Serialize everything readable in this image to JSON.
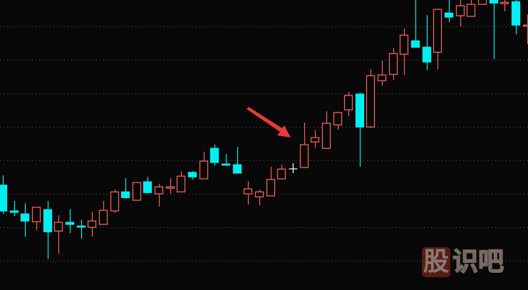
{
  "chart_data": {
    "type": "candlestick",
    "title": "",
    "xlabel": "",
    "ylabel": "",
    "ylim": [
      -8.7,
      77.9
    ],
    "grid": true,
    "grid_step": 10,
    "colors": {
      "up": "#f0605a",
      "down": "#00f0f0",
      "background": "#080808",
      "grid": "#555555",
      "arrow": "#e83a3a"
    },
    "candles": [
      {
        "o": 22.6,
        "h": 25.5,
        "l": 14.0,
        "c": 14.9
      },
      {
        "o": 14.9,
        "h": 17.9,
        "l": 13.4,
        "c": 14.5
      },
      {
        "o": 14.0,
        "h": 17.2,
        "l": 7.2,
        "c": 11.9
      },
      {
        "o": 11.7,
        "h": 16.0,
        "l": 9.1,
        "c": 16.0
      },
      {
        "o": 15.3,
        "h": 17.9,
        "l": 0.6,
        "c": 8.7
      },
      {
        "o": 8.9,
        "h": 13.6,
        "l": 2.1,
        "c": 11.5
      },
      {
        "o": 11.5,
        "h": 15.5,
        "l": 8.3,
        "c": 10.9
      },
      {
        "o": 10.4,
        "h": 12.3,
        "l": 6.6,
        "c": 10.2
      },
      {
        "o": 10.0,
        "h": 14.7,
        "l": 7.2,
        "c": 11.9
      },
      {
        "o": 10.9,
        "h": 17.9,
        "l": 10.9,
        "c": 15.1
      },
      {
        "o": 14.9,
        "h": 21.3,
        "l": 14.3,
        "c": 20.6
      },
      {
        "o": 20.6,
        "h": 24.7,
        "l": 18.5,
        "c": 18.9
      },
      {
        "o": 18.1,
        "h": 23.4,
        "l": 18.1,
        "c": 23.4
      },
      {
        "o": 23.6,
        "h": 25.1,
        "l": 20.2,
        "c": 20.4
      },
      {
        "o": 20.0,
        "h": 23.0,
        "l": 16.2,
        "c": 22.1
      },
      {
        "o": 21.7,
        "h": 24.7,
        "l": 20.0,
        "c": 22.1
      },
      {
        "o": 20.6,
        "h": 26.8,
        "l": 20.6,
        "c": 25.3
      },
      {
        "o": 26.4,
        "h": 26.8,
        "l": 24.3,
        "c": 25.1
      },
      {
        "o": 24.5,
        "h": 32.6,
        "l": 24.5,
        "c": 29.8
      },
      {
        "o": 33.6,
        "h": 34.7,
        "l": 28.5,
        "c": 29.4
      },
      {
        "o": 28.9,
        "h": 31.9,
        "l": 28.5,
        "c": 28.7
      },
      {
        "o": 28.7,
        "h": 34.0,
        "l": 26.2,
        "c": 26.2
      },
      {
        "o": 20.0,
        "h": 23.8,
        "l": 16.8,
        "c": 21.5
      },
      {
        "o": 19.1,
        "h": 21.3,
        "l": 16.6,
        "c": 20.6
      },
      {
        "o": 19.4,
        "h": 28.1,
        "l": 19.4,
        "c": 24.3
      },
      {
        "o": 24.5,
        "h": 28.7,
        "l": 24.5,
        "c": 27.4
      },
      null,
      {
        "o": 27.9,
        "h": 41.3,
        "l": 27.9,
        "c": 34.7
      },
      {
        "o": 35.5,
        "h": 39.1,
        "l": 33.8,
        "c": 36.8
      },
      {
        "o": 33.6,
        "h": 44.7,
        "l": 33.4,
        "c": 41.1
      },
      {
        "o": 40.6,
        "h": 44.5,
        "l": 39.1,
        "c": 44.3
      },
      {
        "o": 45.1,
        "h": 50.4,
        "l": 43.2,
        "c": 49.4
      },
      {
        "o": 49.8,
        "h": 50.2,
        "l": 28.1,
        "c": 40.0
      },
      {
        "o": 40.0,
        "h": 57.2,
        "l": 39.6,
        "c": 55.3
      },
      {
        "o": 53.8,
        "h": 59.8,
        "l": 52.3,
        "c": 55.5
      },
      {
        "o": 55.7,
        "h": 63.6,
        "l": 54.0,
        "c": 61.9
      },
      {
        "o": 61.7,
        "h": 69.4,
        "l": 55.5,
        "c": 67.4
      },
      {
        "o": 65.7,
        "h": 80.0,
        "l": 63.8,
        "c": 63.8
      },
      {
        "o": 63.8,
        "h": 73.4,
        "l": 57.0,
        "c": 59.4
      },
      {
        "o": 62.3,
        "h": 75.3,
        "l": 57.2,
        "c": 75.1
      },
      {
        "o": 74.0,
        "h": 80.0,
        "l": 71.3,
        "c": 72.8
      },
      {
        "o": 73.2,
        "h": 80.0,
        "l": 70.0,
        "c": 76.2
      },
      {
        "o": 73.0,
        "h": 80.0,
        "l": 73.0,
        "c": 76.6
      },
      {
        "o": 76.6,
        "h": 80.0,
        "l": 76.6,
        "c": 79.0
      },
      {
        "o": 79.0,
        "h": 80.0,
        "l": 60.2,
        "c": 77.0
      },
      {
        "o": 76.8,
        "h": 80.0,
        "l": 74.5,
        "c": 77.2
      },
      {
        "o": 77.4,
        "h": 80.0,
        "l": 67.7,
        "c": 70.4
      },
      {
        "o": 70.2,
        "h": 73.6,
        "l": 64.7,
        "c": 70.4
      }
    ],
    "annotations": [
      {
        "type": "arrow",
        "points_to_candle": 27
      }
    ]
  },
  "watermark": {
    "text_boxed": "股",
    "text_plain": "识吧"
  }
}
